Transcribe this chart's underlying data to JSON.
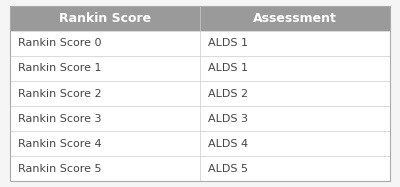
{
  "col_headers": [
    "Rankin Score",
    "Assessment"
  ],
  "rows": [
    [
      "Rankin Score 0",
      "ALDS 1"
    ],
    [
      "Rankin Score 1",
      "ALDS 1"
    ],
    [
      "Rankin Score 2",
      "ALDS 2"
    ],
    [
      "Rankin Score 3",
      "ALDS 3"
    ],
    [
      "Rankin Score 4",
      "ALDS 4"
    ],
    [
      "Rankin Score 5",
      "ALDS 5"
    ]
  ],
  "header_bg_color": "#9a9a9a",
  "header_text_color": "#ffffff",
  "row_bg_color": "#ffffff",
  "row_text_color": "#444444",
  "border_color": "#cccccc",
  "outer_border_color": "#aaaaaa",
  "bg_color": "#f5f5f5",
  "header_fontsize": 9.0,
  "row_fontsize": 8.0,
  "col_split": 0.5,
  "fig_width": 4.0,
  "fig_height": 1.87,
  "dpi": 100
}
